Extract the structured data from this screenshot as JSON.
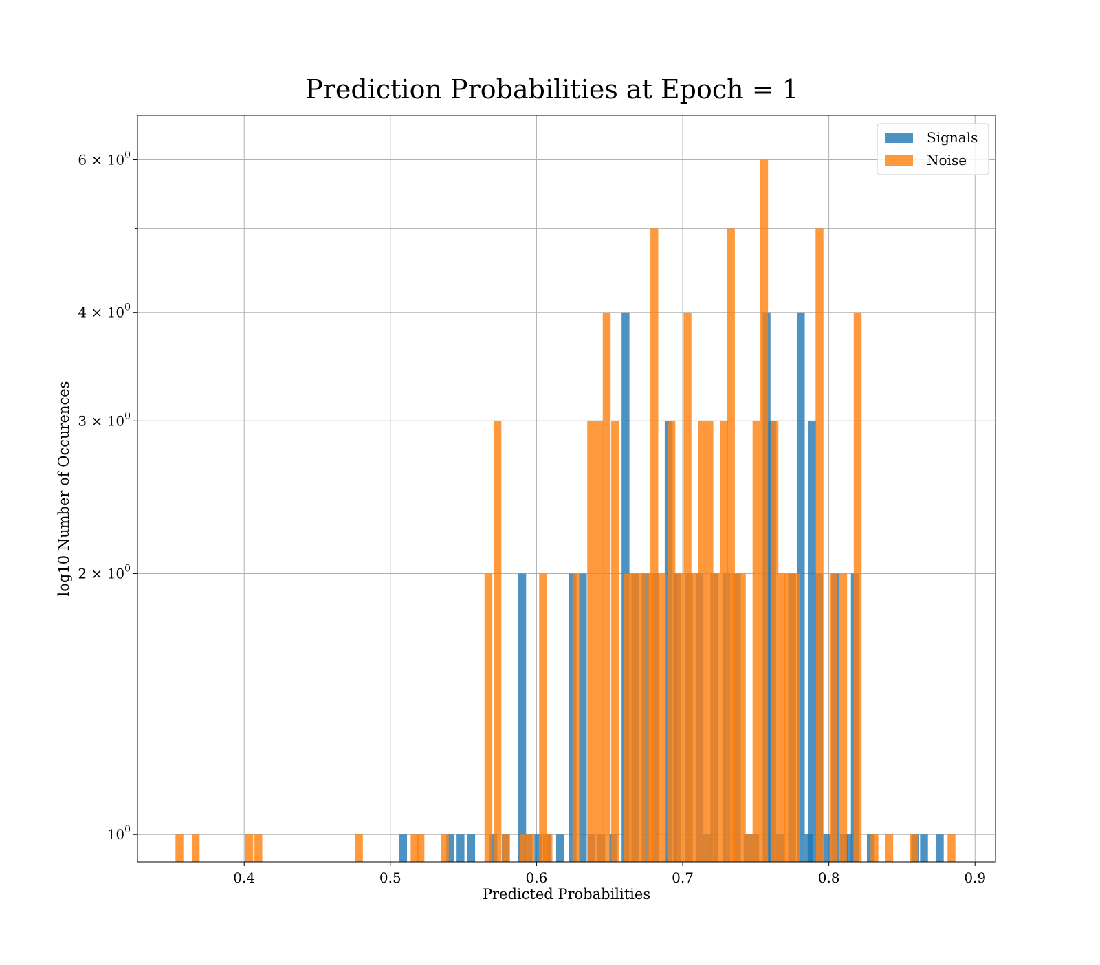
{
  "chart_data": {
    "type": "bar",
    "title": "Prediction Probabilities at Epoch = 1",
    "xlabel": "Predicted Probabilities",
    "ylabel": "log10 Number of Occurences",
    "xlim": [
      0.327,
      0.914
    ],
    "ylim": [
      0.93,
      6.75
    ],
    "yscale": "log",
    "grid": true,
    "legend_position": "upper right",
    "bin_width": 0.00537,
    "x_ticks": [
      {
        "value": 0.4,
        "label": "0.4"
      },
      {
        "value": 0.5,
        "label": "0.5"
      },
      {
        "value": 0.6,
        "label": "0.6"
      },
      {
        "value": 0.7,
        "label": "0.7"
      },
      {
        "value": 0.8,
        "label": "0.8"
      },
      {
        "value": 0.9,
        "label": "0.9"
      }
    ],
    "y_ticks": [
      {
        "value": 1,
        "label": "10",
        "exp": "0"
      },
      {
        "value": 2,
        "label": "2 × 10",
        "exp": "0"
      },
      {
        "value": 3,
        "label": "3 × 10",
        "exp": "0"
      },
      {
        "value": 4,
        "label": "4 × 10",
        "exp": "0"
      },
      {
        "value": 6,
        "label": "6 × 10",
        "exp": "0"
      }
    ],
    "y_minor_ticks": [
      5
    ],
    "series": [
      {
        "name": "Signals",
        "color": "#1f77b4",
        "opacity": 0.8,
        "x": [
          0.5087,
          0.541,
          0.548,
          0.5553,
          0.5705,
          0.579,
          0.5902,
          0.5945,
          0.6012,
          0.6071,
          0.6161,
          0.6247,
          0.6317,
          0.6377,
          0.6443,
          0.6524,
          0.6609,
          0.6677,
          0.6746,
          0.6812,
          0.6904,
          0.6961,
          0.7043,
          0.7115,
          0.7167,
          0.7217,
          0.7299,
          0.7371,
          0.7444,
          0.7496,
          0.7574,
          0.7612,
          0.7666,
          0.7748,
          0.7808,
          0.7862,
          0.7886,
          0.7934,
          0.7989,
          0.8044,
          0.8102,
          0.8136,
          0.8178,
          0.8287,
          0.8591,
          0.8651,
          0.8759
        ],
        "values": [
          1,
          1,
          1,
          1,
          1,
          1,
          2,
          1,
          1,
          1,
          1,
          2,
          2,
          1,
          1,
          1,
          4,
          2,
          2,
          2,
          3,
          2,
          2,
          2,
          1,
          2,
          2,
          2,
          1,
          1,
          4,
          3,
          1,
          2,
          4,
          1,
          3,
          2,
          1,
          2,
          1,
          1,
          2,
          1,
          1,
          1,
          1
        ]
      },
      {
        "name": "Noise",
        "color": "#ff7f0e",
        "opacity": 0.8,
        "x": [
          0.3557,
          0.3668,
          0.4035,
          0.4097,
          0.4785,
          0.5166,
          0.5206,
          0.5373,
          0.5671,
          0.5733,
          0.5791,
          0.5914,
          0.5958,
          0.6045,
          0.6082,
          0.6273,
          0.6374,
          0.6428,
          0.648,
          0.6538,
          0.6624,
          0.6672,
          0.6725,
          0.6781,
          0.6806,
          0.6858,
          0.6923,
          0.6981,
          0.7033,
          0.7079,
          0.7131,
          0.7183,
          0.7232,
          0.7284,
          0.733,
          0.7356,
          0.7405,
          0.7456,
          0.7505,
          0.7557,
          0.7628,
          0.7677,
          0.7723,
          0.7775,
          0.7936,
          0.8032,
          0.8098,
          0.8197,
          0.8312,
          0.8413,
          0.8581,
          0.8839
        ],
        "values": [
          1,
          1,
          1,
          1,
          1,
          1,
          1,
          1,
          2,
          3,
          1,
          1,
          1,
          2,
          1,
          2,
          3,
          3,
          4,
          3,
          2,
          2,
          2,
          2,
          5,
          2,
          3,
          2,
          4,
          2,
          3,
          3,
          2,
          3,
          5,
          2,
          2,
          1,
          3,
          6,
          3,
          2,
          2,
          2,
          5,
          2,
          2,
          4,
          1,
          1,
          1,
          1
        ]
      }
    ]
  }
}
